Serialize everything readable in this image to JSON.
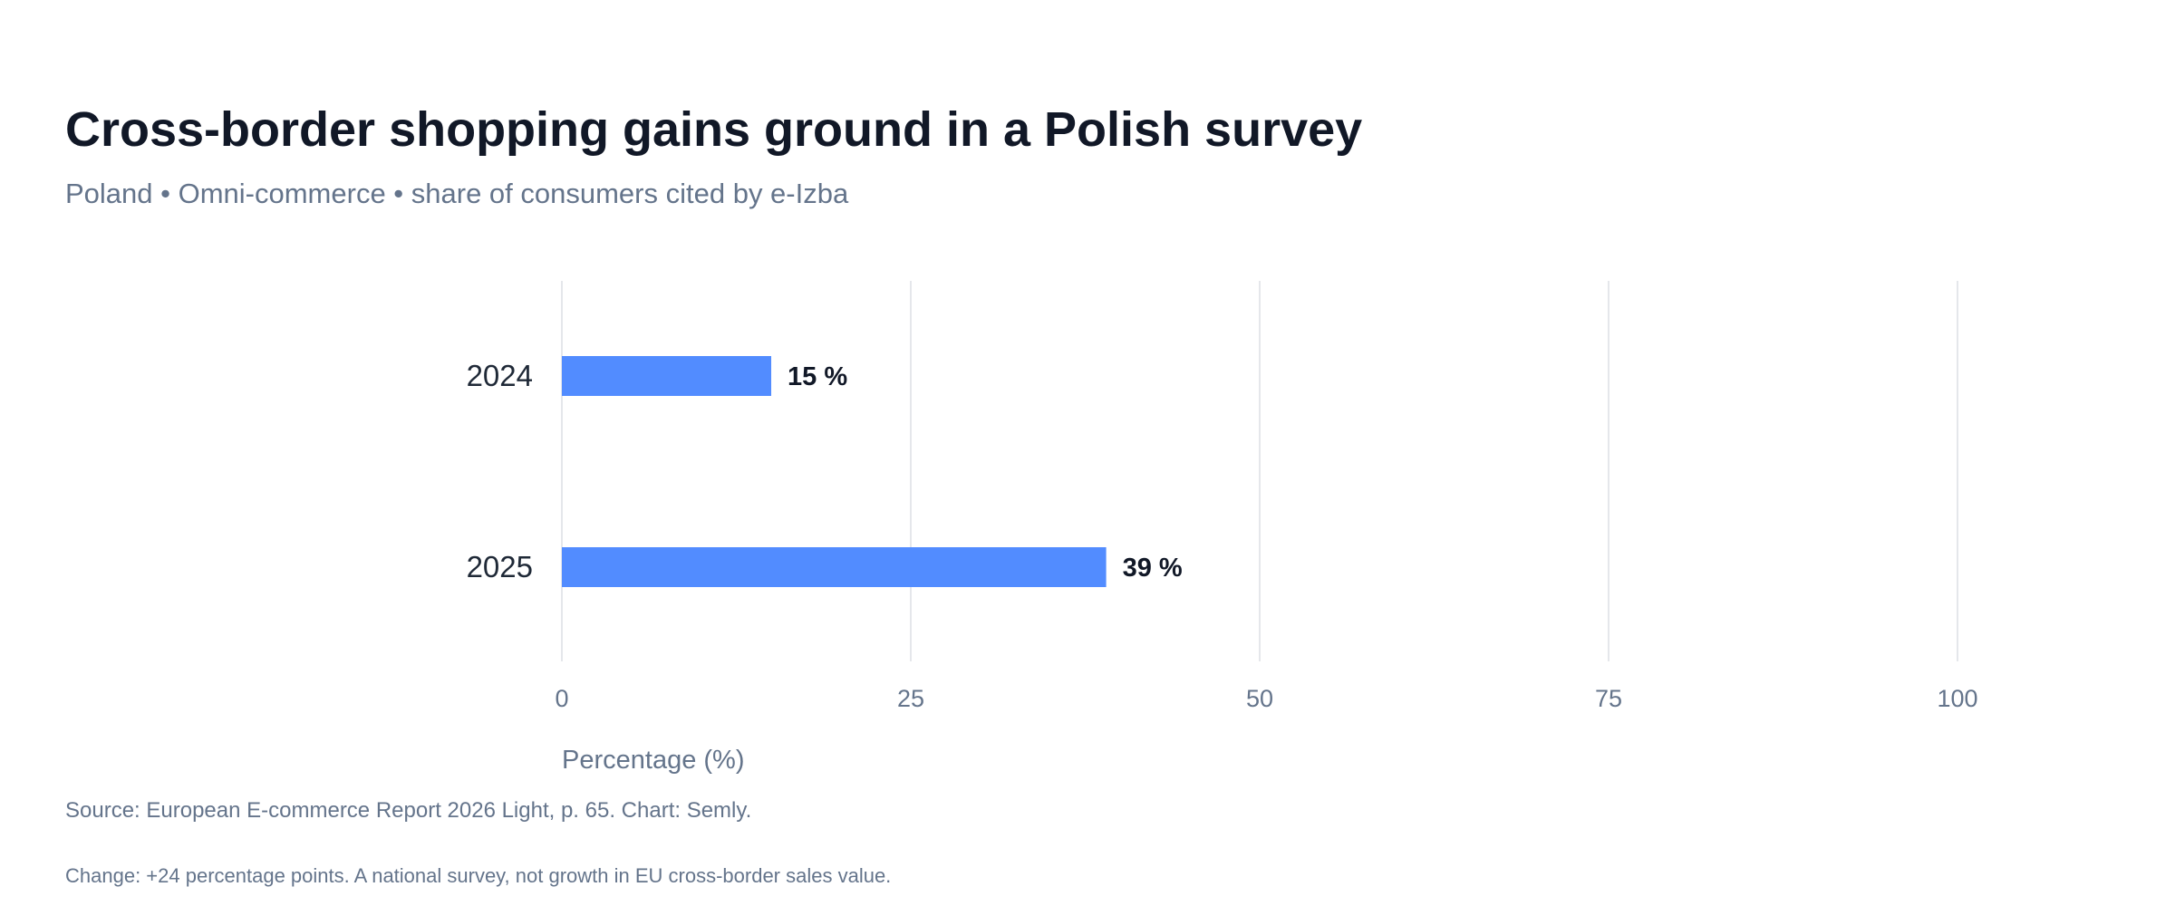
{
  "title": "Cross-border shopping gains ground in a Polish survey",
  "subtitle": "Poland • Omni-commerce • share of consumers cited by e-Izba",
  "source": "Source: European E-commerce Report 2026 Light, p. 65. Chart: Semly.",
  "note": "Change: +24 percentage points. A national survey, not growth in EU cross-border sales value.",
  "colors": {
    "bar": "#528cff",
    "grid": "#e5e7eb"
  },
  "chart_data": {
    "type": "bar",
    "orientation": "horizontal",
    "categories": [
      "2024",
      "2025"
    ],
    "values": [
      15,
      39
    ],
    "value_labels": [
      "15 %",
      "39 %"
    ],
    "xlabel": "Percentage (%)",
    "xlim": [
      0,
      100
    ],
    "xticks": [
      "0",
      "25",
      "50",
      "75",
      "100"
    ],
    "grid": true
  }
}
